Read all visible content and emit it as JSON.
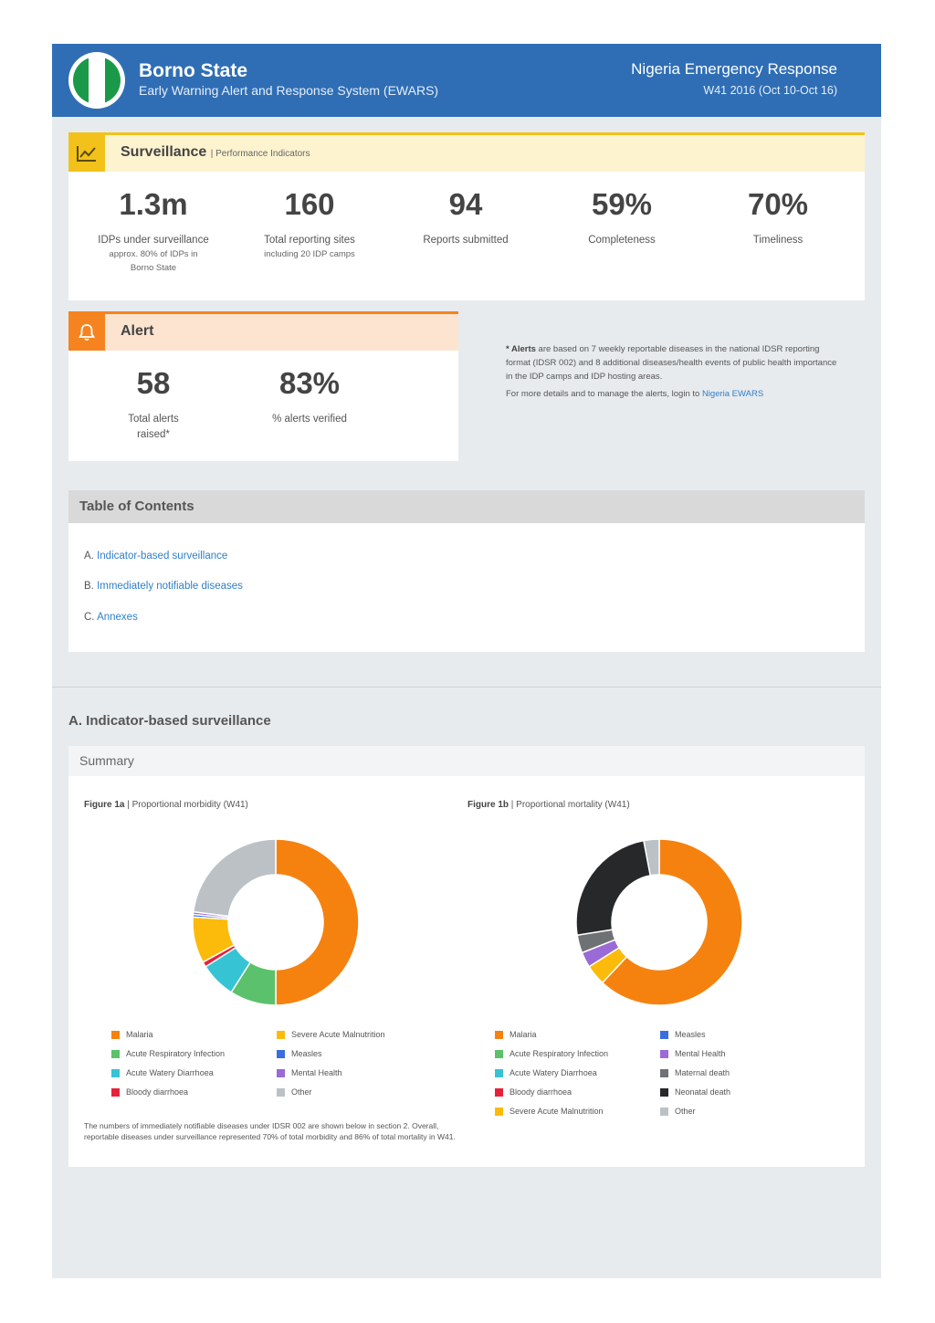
{
  "header": {
    "title": "Borno State",
    "subtitle": "Early Warning Alert and Response System (EWARS)",
    "org": "Nigeria Emergency Response",
    "week": "W41 2016 (Oct 10-Oct 16)"
  },
  "surveillance": {
    "title": "Surveillance",
    "subtitle": "| Performance Indicators",
    "kpis": [
      {
        "value": "1.3m",
        "label": "IDPs under surveillance",
        "sub1": "approx. 80% of IDPs in",
        "sub2": "Borno State"
      },
      {
        "value": "160",
        "label": "Total reporting sites",
        "sub1": "including 20 IDP camps",
        "sub2": ""
      },
      {
        "value": "94",
        "label": "Reports submitted",
        "sub1": "",
        "sub2": ""
      },
      {
        "value": "59%",
        "label": "Completeness",
        "sub1": "",
        "sub2": ""
      },
      {
        "value": "70%",
        "label": "Timeliness",
        "sub1": "",
        "sub2": ""
      }
    ]
  },
  "alert": {
    "title": "Alert",
    "kpis": [
      {
        "value": "58",
        "label1": "Total alerts",
        "label2": "raised*"
      },
      {
        "value": "83%",
        "label1": "% alerts verified",
        "label2": ""
      }
    ],
    "note_bold": "* Alerts",
    "note_text": " are based on 7 weekly reportable diseases in the national IDSR reporting format (IDSR 002) and 8 additional diseases/health events of public health importance in the IDP camps and IDP hosting areas.",
    "note_link_prefix": "For more details and to manage the alerts, login to ",
    "note_link": "Nigeria EWARS"
  },
  "toc": {
    "title": "Table of Contents",
    "items": [
      {
        "prefix": "A.",
        "label": "Indicator-based surveillance"
      },
      {
        "prefix": "B.",
        "label": "Immediately notifiable diseases"
      },
      {
        "prefix": "C.",
        "label": "Annexes"
      }
    ]
  },
  "sectionA": {
    "title": "A. Indicator-based surveillance",
    "summary_tab": "Summary",
    "footnote": "The numbers of immediately notifiable diseases under IDSR 002 are shown below in section 2. Overall, reportable diseases under surveillance represented 70% of total morbidity and 86% of total mortality in W41."
  },
  "chart_data": [
    {
      "type": "pie",
      "title_bold": "Figure 1a",
      "title": "| Proportional morbidity (W41)",
      "labels": [
        "Malaria",
        "Acute Respiratory Infection",
        "Acute Watery Diarrhoea",
        "Bloody diarrhoea",
        "Severe Acute Malnutrition",
        "Measles",
        "Mental Health",
        "Other"
      ],
      "values": [
        50,
        9,
        7,
        1,
        9,
        0.5,
        0.5,
        23
      ],
      "colors": [
        "#f5820f",
        "#5cc16c",
        "#36c4d4",
        "#e8213a",
        "#fcbb0a",
        "#3a6ee0",
        "#9a6ad6",
        "#bcc1c6"
      ],
      "legend_order": [
        [
          0,
          1,
          2,
          3
        ],
        [
          4,
          5,
          6,
          7
        ]
      ]
    },
    {
      "type": "pie",
      "title_bold": "Figure 1b",
      "title": "| Proportional mortality (W41)",
      "labels": [
        "Malaria",
        "Acute Respiratory Infection",
        "Acute Watery Diarrhoea",
        "Bloody diarrhoea",
        "Severe Acute Malnutrition",
        "Measles",
        "Mental Health",
        "Maternal death",
        "Neonatal death",
        "Other"
      ],
      "values": [
        62,
        0,
        0,
        0,
        4,
        0,
        3,
        3.5,
        24.5,
        3
      ],
      "colors": [
        "#f5820f",
        "#5cc16c",
        "#36c4d4",
        "#e8213a",
        "#fcbb0a",
        "#3a6ee0",
        "#9a6ad6",
        "#6f7275",
        "#26282a",
        "#bcc1c6"
      ],
      "legend_order": [
        [
          0,
          1,
          2,
          3,
          4
        ],
        [
          5,
          6,
          7,
          8,
          9
        ]
      ]
    }
  ]
}
